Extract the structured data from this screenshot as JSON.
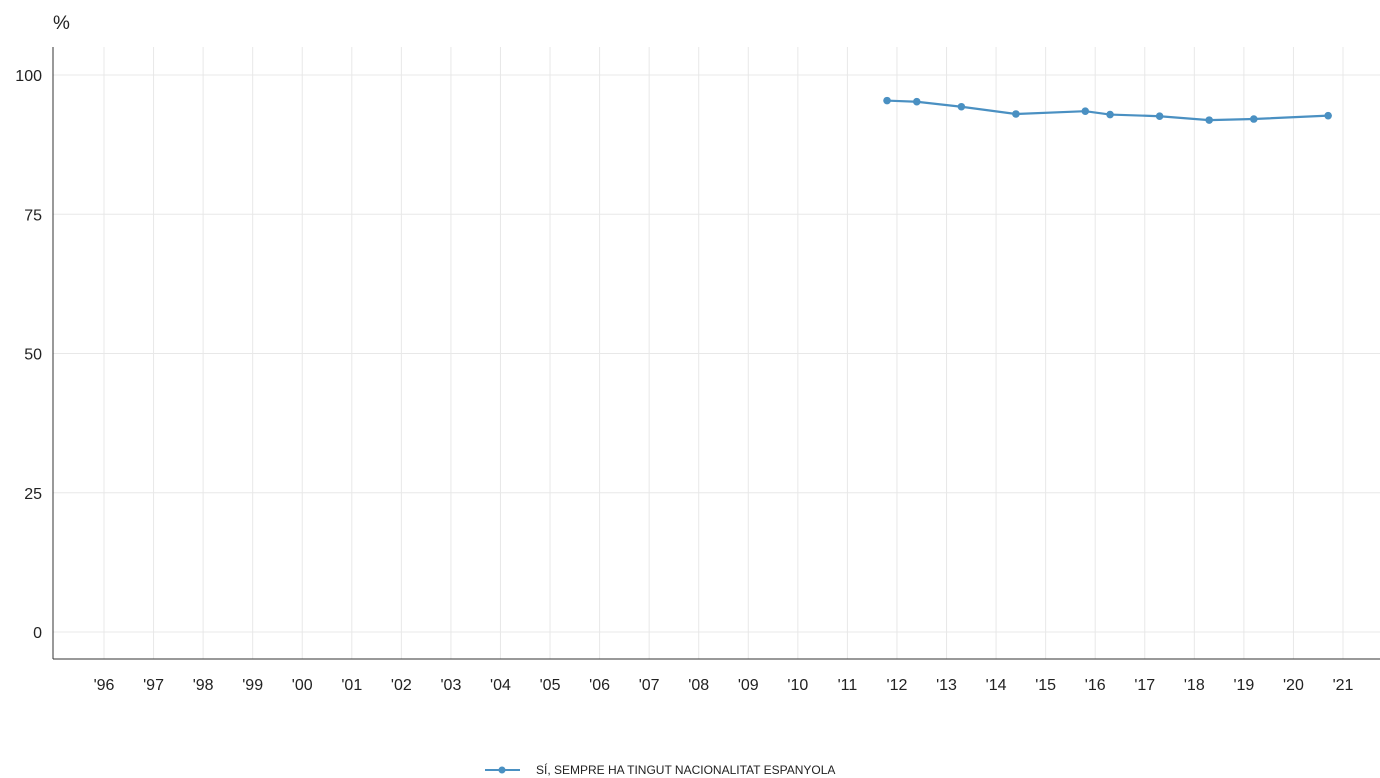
{
  "chart_data": {
    "type": "line",
    "y_unit_label": "%",
    "ylim": [
      0,
      100
    ],
    "yticks": [
      0,
      25,
      50,
      75,
      100
    ],
    "x_categories": [
      "'96",
      "'97",
      "'98",
      "'99",
      "'00",
      "'01",
      "'02",
      "'03",
      "'04",
      "'05",
      "'06",
      "'07",
      "'08",
      "'09",
      "'10",
      "'11",
      "'12",
      "'13",
      "'14",
      "'15",
      "'16",
      "'17",
      "'18",
      "'19",
      "'20",
      "'21"
    ],
    "grid": true,
    "legend_position": "bottom-center",
    "series": [
      {
        "name": "SÍ, SEMPRE HA TINGUT NACIONALITAT ESPANYOLA",
        "color": "#4a90c2",
        "points": [
          {
            "x": 2011.8,
            "y": 95.4
          },
          {
            "x": 2012.4,
            "y": 95.2
          },
          {
            "x": 2013.3,
            "y": 94.3
          },
          {
            "x": 2014.4,
            "y": 93.0
          },
          {
            "x": 2015.8,
            "y": 93.5
          },
          {
            "x": 2016.3,
            "y": 92.9
          },
          {
            "x": 2017.3,
            "y": 92.6
          },
          {
            "x": 2018.3,
            "y": 91.9
          },
          {
            "x": 2019.2,
            "y": 92.1
          },
          {
            "x": 2020.7,
            "y": 92.7
          }
        ]
      }
    ]
  }
}
